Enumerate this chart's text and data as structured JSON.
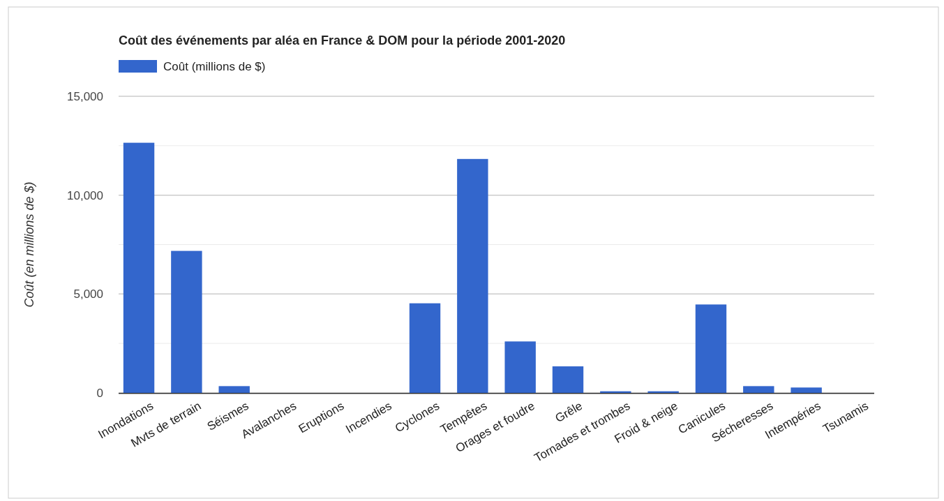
{
  "chart_data": {
    "type": "bar",
    "title": "Coût des événements par aléa en France & DOM pour la période 2001-2020",
    "ylabel": "Coût (en millions de $)",
    "categories": [
      "Inondations",
      "Mvts de terrain",
      "Séismes",
      "Avalanches",
      "Eruptions",
      "Incendies",
      "Cyclones",
      "Tempêtes",
      "Orages et foudre",
      "Grêle",
      "Tornades et trombes",
      "Froid & neige",
      "Canicules",
      "Sécheresses",
      "Intempéries",
      "Tsunamis"
    ],
    "series": [
      {
        "name": "Coût (millions de $)",
        "color": "#3366cc",
        "values": [
          12650,
          7180,
          340,
          0,
          0,
          0,
          4530,
          11830,
          2600,
          1340,
          80,
          80,
          4470,
          340,
          270,
          0
        ]
      }
    ],
    "ylim": [
      0,
      15000
    ],
    "yticks": [
      0,
      {
        "value": 2500,
        "label": null
      },
      {
        "value": 5000,
        "label": "5,000"
      },
      {
        "value": 7500,
        "label": null
      },
      {
        "value": 10000,
        "label": "10,000"
      },
      {
        "value": 12500,
        "label": null
      },
      {
        "value": 15000,
        "label": "15,000"
      }
    ],
    "grid": "y",
    "legend": "top left"
  }
}
